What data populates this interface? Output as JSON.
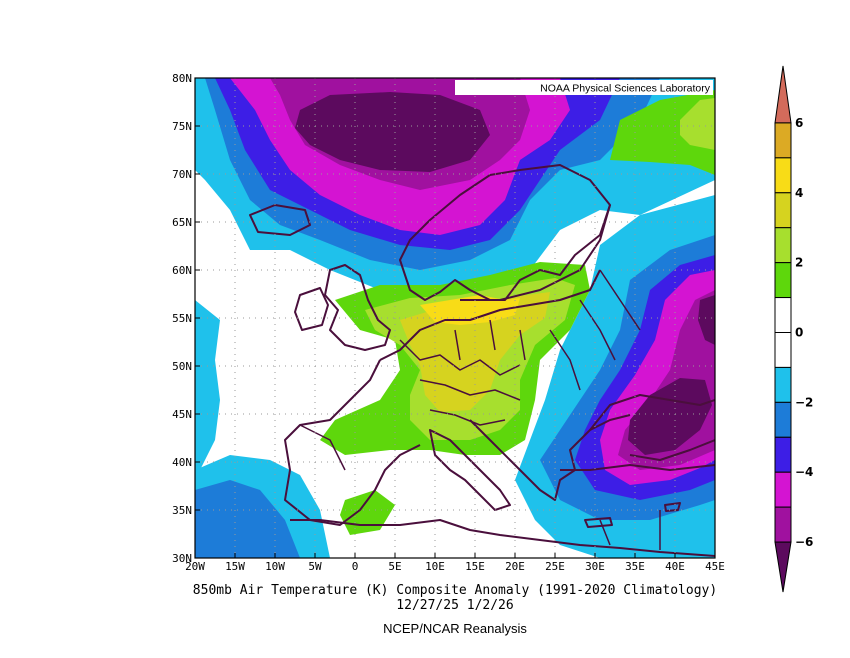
{
  "header": {
    "credit": "NOAA Physical Sciences Laboratory"
  },
  "captions": {
    "line1": "850mb Air Temperature (K) Composite Anomaly (1991-2020 Climatology)",
    "line2": "12/27/25 1/2/26",
    "line3": "NCEP/NCAR Reanalysis"
  },
  "map": {
    "lon_range": [
      -20,
      45
    ],
    "lat_range": [
      30,
      80
    ],
    "lon_ticks": [
      "20W",
      "15W",
      "10W",
      "5W",
      "0",
      "5E",
      "10E",
      "15E",
      "20E",
      "25E",
      "30E",
      "35E",
      "40E",
      "45E"
    ],
    "lat_ticks": [
      "30N",
      "35N",
      "40N",
      "45N",
      "50N",
      "55N",
      "60N",
      "65N",
      "70N",
      "75N",
      "80N"
    ],
    "grid": "dotted"
  },
  "colorbar": {
    "levels": [
      "-6",
      "-4",
      "-2",
      "0",
      "2",
      "4",
      "6"
    ],
    "colors": [
      "#5c0a5e",
      "#a0119f",
      "#d414d2",
      "#3d1ee6",
      "#1d7cd8",
      "#1fc1eb",
      "#ffffff",
      "#ffffff",
      "#5ed70c",
      "#a7df2e",
      "#d6d31f",
      "#f8dc17",
      "#dcaa24",
      "#d36b5b"
    ]
  },
  "anomaly_regions": [
    {
      "name": "cold-core-arctic",
      "level": "-6"
    },
    {
      "name": "cold-core-black-sea",
      "level": "-6"
    },
    {
      "name": "warm-core-central-europe",
      "level": "4"
    }
  ]
}
